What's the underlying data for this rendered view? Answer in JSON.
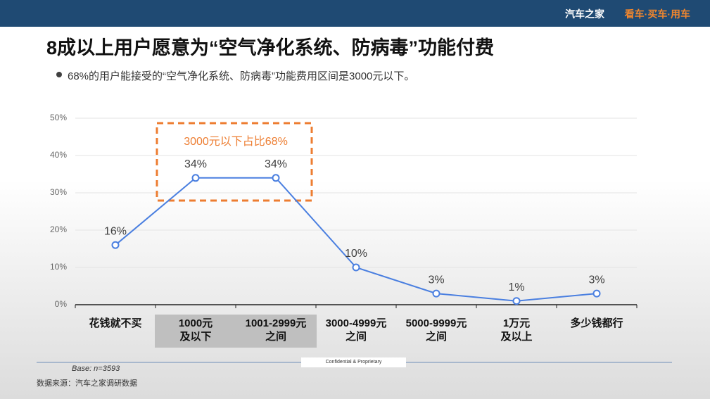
{
  "header": {
    "brand": "汽车之家",
    "slogan": "看车·买车·用车"
  },
  "chart_data": {
    "type": "line",
    "title": "8成以上用户愿意为“空气净化系统、防病毒”功能付费",
    "subtitle": "68%的用户能接受的“空气净化系统、防病毒”功能费用区间是3000元以下。",
    "categories": [
      "花钱就不买",
      "1000元\n及以下",
      "1001-2999元\n之间",
      "3000-4999元\n之间",
      "5000-9999元\n之间",
      "1万元\n及以上",
      "多少钱都行"
    ],
    "series": [
      {
        "name": "占比",
        "color": "#4a7fe0",
        "values": [
          16,
          34,
          34,
          10,
          3,
          1,
          3
        ],
        "value_labels": [
          "16%",
          "34%",
          "34%",
          "10%",
          "3%",
          "1%",
          "3%"
        ]
      }
    ],
    "ylim": [
      0,
      50
    ],
    "yticks": [
      {
        "value": 0,
        "label": "0%"
      },
      {
        "value": 10,
        "label": "10%"
      },
      {
        "value": 20,
        "label": "20%"
      },
      {
        "value": 30,
        "label": "30%"
      },
      {
        "value": 40,
        "label": "40%"
      },
      {
        "value": 50,
        "label": "50%"
      }
    ],
    "grid": true,
    "annotation": "3000元以下占比68%",
    "annotation_color": "#ed7d31"
  },
  "footer": {
    "confidential": "Confidential & Proprietary",
    "base": "Base: n=3593",
    "source": "数据来源：汽车之家调研数据"
  }
}
